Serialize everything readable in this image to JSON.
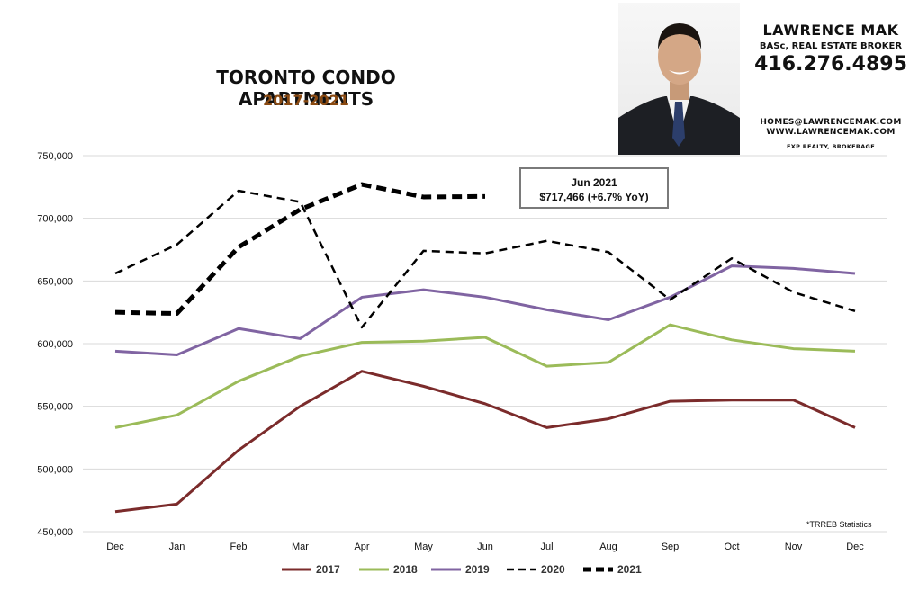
{
  "header": {
    "title": "TORONTO CONDO APARTMENTS",
    "subtitle": "2017-2021"
  },
  "agent": {
    "name": "LAWRENCE MAK",
    "role": "BASc, REAL ESTATE BROKER",
    "phone": "416.276.4895",
    "email": "HOMES@LAWRENCEMAK.COM",
    "website": "WWW.LAWRENCEMAK.COM",
    "brokerage": "EXP REALTY, BROKERAGE"
  },
  "callout": {
    "line1": "Jun 2021",
    "line2": "$717,466 (+6.7% YoY)"
  },
  "source_note": "*TRREB Statistics",
  "chart_data": {
    "type": "line",
    "title": "TORONTO CONDO APARTMENTS",
    "subtitle": "2017-2021",
    "categories": [
      "Dec",
      "Jan",
      "Feb",
      "Mar",
      "Apr",
      "May",
      "Jun",
      "Jul",
      "Aug",
      "Sep",
      "Oct",
      "Nov",
      "Dec"
    ],
    "ylim": [
      450000,
      750000
    ],
    "yticks": [
      450000,
      500000,
      550000,
      600000,
      650000,
      700000,
      750000
    ],
    "ytick_labels": [
      "450,000",
      "500,000",
      "550,000",
      "600,000",
      "650,000",
      "700,000",
      "750,000"
    ],
    "grid": true,
    "legend_position": "bottom",
    "series": [
      {
        "name": "2017",
        "color": "#7b2b2b",
        "style": "solid",
        "width": 3,
        "values": [
          466000,
          472000,
          515000,
          550000,
          578000,
          566000,
          552000,
          533000,
          540000,
          554000,
          555000,
          555000,
          533000
        ]
      },
      {
        "name": "2018",
        "color": "#9bbb59",
        "style": "solid",
        "width": 3,
        "values": [
          533000,
          543000,
          570000,
          590000,
          601000,
          602000,
          605000,
          582000,
          585000,
          615000,
          603000,
          596000,
          594000
        ]
      },
      {
        "name": "2019",
        "color": "#8064a2",
        "style": "solid",
        "width": 3,
        "values": [
          594000,
          591000,
          612000,
          604000,
          637000,
          643000,
          637000,
          627000,
          619000,
          637000,
          662000,
          660000,
          656000
        ]
      },
      {
        "name": "2020",
        "color": "#000000",
        "style": "dashed",
        "width": 2.5,
        "values": [
          656000,
          679000,
          722000,
          713000,
          613000,
          674000,
          672000,
          682000,
          673000,
          635000,
          668000,
          641000,
          626000
        ]
      },
      {
        "name": "2021",
        "color": "#000000",
        "style": "dashed-bold",
        "width": 5,
        "values": [
          625000,
          624000,
          677000,
          707000,
          727000,
          717000,
          717466,
          null,
          null,
          null,
          null,
          null,
          null
        ]
      }
    ]
  }
}
